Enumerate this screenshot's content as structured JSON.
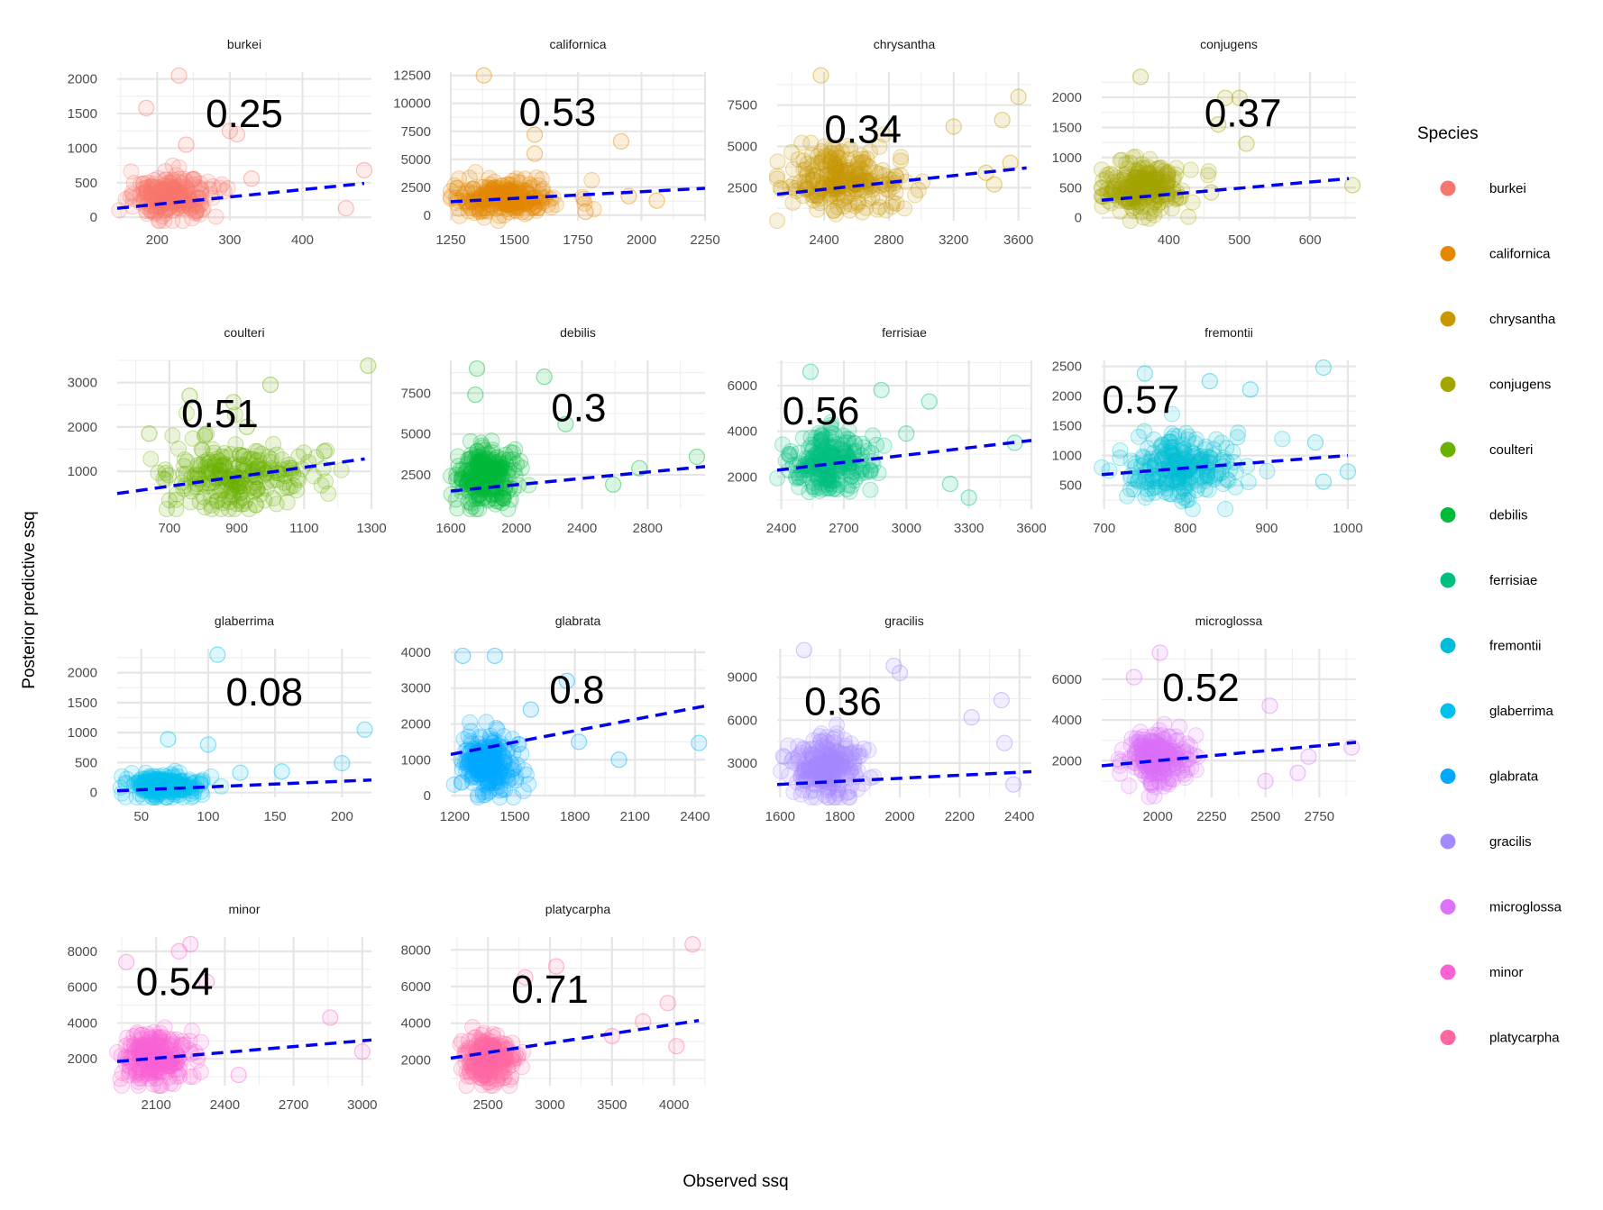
{
  "x_axis_title": "Observed ssq",
  "y_axis_title": "Posterior predictive ssq",
  "legend": {
    "title": "Species",
    "entries": [
      {
        "label": "burkei",
        "color": "#F8766D"
      },
      {
        "label": "californica",
        "color": "#E58700"
      },
      {
        "label": "chrysantha",
        "color": "#C99800"
      },
      {
        "label": "conjugens",
        "color": "#A3A500"
      },
      {
        "label": "coulteri",
        "color": "#6BB100"
      },
      {
        "label": "debilis",
        "color": "#00BA38"
      },
      {
        "label": "ferrisiae",
        "color": "#00BF7D"
      },
      {
        "label": "fremontii",
        "color": "#00BCD8"
      },
      {
        "label": "glaberrima",
        "color": "#00C0EF"
      },
      {
        "label": "glabrata",
        "color": "#00A9FF"
      },
      {
        "label": "gracilis",
        "color": "#A58AFF"
      },
      {
        "label": "microglossa",
        "color": "#DC71FA"
      },
      {
        "label": "minor",
        "color": "#FB61D7"
      },
      {
        "label": "platycarpha",
        "color": "#FF67A4"
      }
    ]
  },
  "chart_data": [
    {
      "type": "scatter",
      "title": "burkei",
      "color": "#F8766D",
      "annotation": "0.25",
      "xlim": [
        145,
        495
      ],
      "ylim": [
        -50,
        2100
      ],
      "x_ticks": [
        200,
        300,
        400
      ],
      "x_tick_labels": [
        "200",
        "300",
        "400"
      ],
      "y_ticks": [
        0,
        500,
        1000,
        1500,
        2000
      ],
      "y_tick_labels": [
        "0",
        "500",
        "1000",
        "1500",
        "2000"
      ],
      "trend": {
        "x": [
          145,
          485
        ],
        "y": [
          130,
          490
        ]
      },
      "points": {
        "x_center": 200,
        "x_spread": 35,
        "y_center": 300,
        "y_spread": 250
      },
      "sample_points": [
        [
          230,
          2050
        ],
        [
          185,
          1580
        ],
        [
          300,
          1250
        ],
        [
          310,
          1200
        ],
        [
          240,
          1050
        ],
        [
          460,
          130
        ],
        [
          485,
          680
        ],
        [
          330,
          560
        ]
      ],
      "ann_pos": [
        320,
        1500
      ]
    },
    {
      "type": "scatter",
      "title": "californica",
      "color": "#E58700",
      "annotation": "0.53",
      "xlim": [
        1250,
        2250
      ],
      "ylim": [
        -500,
        12800
      ],
      "x_ticks": [
        1250,
        1500,
        1750,
        2000,
        2250
      ],
      "x_tick_labels": [
        "1250",
        "1500",
        "1750",
        "2000",
        "2250"
      ],
      "y_ticks": [
        0,
        2500,
        5000,
        7500,
        10000,
        12500
      ],
      "y_tick_labels": [
        "0",
        "2500",
        "5000",
        "7500",
        "10000",
        "12500"
      ],
      "trend": {
        "x": [
          1250,
          2250
        ],
        "y": [
          1200,
          2400
        ]
      },
      "points": {
        "x_center": 1400,
        "x_spread": 130,
        "y_center": 1500,
        "y_spread": 1400
      },
      "sample_points": [
        [
          1380,
          12500
        ],
        [
          1580,
          7200
        ],
        [
          1920,
          6600
        ],
        [
          1580,
          5500
        ],
        [
          1950,
          1700
        ],
        [
          2060,
          1300
        ],
        [
          1780,
          300
        ]
      ],
      "ann_pos": [
        1670,
        9200
      ]
    },
    {
      "type": "scatter",
      "title": "chrysantha",
      "color": "#C99800",
      "annotation": "0.34",
      "xlim": [
        2110,
        3680
      ],
      "ylim": [
        500,
        9500
      ],
      "x_ticks": [
        2400,
        2800,
        3200,
        3600
      ],
      "x_tick_labels": [
        "2400",
        "2800",
        "3200",
        "3600"
      ],
      "y_ticks": [
        2500,
        5000,
        7500
      ],
      "y_tick_labels": [
        "2500",
        "5000",
        "7500"
      ],
      "trend": {
        "x": [
          2110,
          3650
        ],
        "y": [
          2100,
          3700
        ]
      },
      "points": {
        "x_center": 2420,
        "x_spread": 220,
        "y_center": 3000,
        "y_spread": 1500
      },
      "sample_points": [
        [
          2380,
          9300
        ],
        [
          3600,
          8000
        ],
        [
          3500,
          6600
        ],
        [
          3200,
          6200
        ],
        [
          3550,
          4000
        ],
        [
          3400,
          3400
        ],
        [
          3450,
          2700
        ]
      ],
      "ann_pos": [
        2640,
        6050
      ]
    },
    {
      "type": "scatter",
      "title": "conjugens",
      "color": "#A3A500",
      "annotation": "0.37",
      "xlim": [
        305,
        665
      ],
      "ylim": [
        -50,
        2420
      ],
      "x_ticks": [
        400,
        500,
        600
      ],
      "x_tick_labels": [
        "400",
        "500",
        "600"
      ],
      "y_ticks": [
        0,
        500,
        1000,
        1500,
        2000
      ],
      "y_tick_labels": [
        "0",
        "500",
        "1000",
        "1500",
        "2000"
      ],
      "trend": {
        "x": [
          305,
          655
        ],
        "y": [
          290,
          650
        ]
      },
      "points": {
        "x_center": 345,
        "x_spread": 40,
        "y_center": 520,
        "y_spread": 380
      },
      "sample_points": [
        [
          360,
          2340
        ],
        [
          480,
          1990
        ],
        [
          500,
          1990
        ],
        [
          470,
          1550
        ],
        [
          510,
          1230
        ],
        [
          660,
          540
        ],
        [
          460,
          420
        ]
      ],
      "ann_pos": [
        505,
        1740
      ]
    },
    {
      "type": "scatter",
      "title": "coulteri",
      "color": "#6BB100",
      "annotation": "0.51",
      "xlim": [
        545,
        1300
      ],
      "ylim": [
        150,
        3500
      ],
      "x_ticks": [
        700,
        900,
        1100,
        1300
      ],
      "x_tick_labels": [
        "700",
        "900",
        "1100",
        "1300"
      ],
      "y_ticks": [
        1000,
        2000,
        3000
      ],
      "y_tick_labels": [
        "1000",
        "2000",
        "3000"
      ],
      "trend": {
        "x": [
          545,
          1280
        ],
        "y": [
          500,
          1280
        ]
      },
      "points": {
        "x_center": 840,
        "x_spread": 140,
        "y_center": 900,
        "y_spread": 600
      },
      "sample_points": [
        [
          1290,
          3380
        ],
        [
          1000,
          2950
        ],
        [
          760,
          2700
        ],
        [
          890,
          2560
        ],
        [
          930,
          2000
        ],
        [
          1160,
          1450
        ],
        [
          640,
          1850
        ]
      ],
      "ann_pos": [
        850,
        2300
      ]
    },
    {
      "type": "scatter",
      "title": "debilis",
      "color": "#00BA38",
      "annotation": "0.3",
      "xlim": [
        1600,
        3150
      ],
      "ylim": [
        400,
        9500
      ],
      "x_ticks": [
        1600,
        2000,
        2400,
        2800
      ],
      "x_tick_labels": [
        "1600",
        "2000",
        "2400",
        "2800"
      ],
      "y_ticks": [
        2500,
        5000,
        7500
      ],
      "y_tick_labels": [
        "2500",
        "5000",
        "7500"
      ],
      "trend": {
        "x": [
          1600,
          3150
        ],
        "y": [
          1500,
          3000
        ]
      },
      "points": {
        "x_center": 1760,
        "x_spread": 110,
        "y_center": 2300,
        "y_spread": 1500
      },
      "sample_points": [
        [
          1760,
          9000
        ],
        [
          2170,
          8500
        ],
        [
          1750,
          7400
        ],
        [
          2300,
          5600
        ],
        [
          2750,
          2900
        ],
        [
          3100,
          3600
        ],
        [
          2590,
          1900
        ]
      ],
      "ann_pos": [
        2380,
        6600
      ]
    },
    {
      "type": "scatter",
      "title": "ferrisiae",
      "color": "#00BF7D",
      "annotation": "0.56",
      "xlim": [
        2380,
        3600
      ],
      "ylim": [
        600,
        7100
      ],
      "x_ticks": [
        2400,
        2700,
        3000,
        3300,
        3600
      ],
      "x_tick_labels": [
        "2400",
        "2700",
        "3000",
        "3300",
        "3600"
      ],
      "y_ticks": [
        2000,
        4000,
        6000
      ],
      "y_tick_labels": [
        "2000",
        "4000",
        "6000"
      ],
      "trend": {
        "x": [
          2380,
          3600
        ],
        "y": [
          2300,
          3600
        ]
      },
      "points": {
        "x_center": 2580,
        "x_spread": 130,
        "y_center": 2700,
        "y_spread": 1100
      },
      "sample_points": [
        [
          2540,
          6600
        ],
        [
          2880,
          5800
        ],
        [
          3110,
          5300
        ],
        [
          3210,
          1700
        ],
        [
          3300,
          1100
        ],
        [
          3520,
          3500
        ],
        [
          3000,
          3900
        ]
      ],
      "ann_pos": [
        2590,
        4900
      ]
    },
    {
      "type": "scatter",
      "title": "fremontii",
      "color": "#00BCD8",
      "annotation": "0.57",
      "xlim": [
        697,
        1010
      ],
      "ylim": [
        100,
        2600
      ],
      "x_ticks": [
        700,
        800,
        900,
        1000
      ],
      "x_tick_labels": [
        "700",
        "800",
        "900",
        "1000"
      ],
      "y_ticks": [
        500,
        1000,
        1500,
        2000,
        2500
      ],
      "y_tick_labels": [
        "500",
        "1000",
        "1500",
        "2000",
        "2500"
      ],
      "trend": {
        "x": [
          697,
          1000
        ],
        "y": [
          680,
          1000
        ]
      },
      "points": {
        "x_center": 775,
        "x_spread": 45,
        "y_center": 820,
        "y_spread": 450
      },
      "sample_points": [
        [
          970,
          2480
        ],
        [
          750,
          2380
        ],
        [
          830,
          2250
        ],
        [
          880,
          2110
        ],
        [
          960,
          1220
        ],
        [
          970,
          560
        ],
        [
          1000,
          730
        ]
      ],
      "ann_pos": [
        745,
        1940
      ]
    },
    {
      "type": "scatter",
      "title": "glaberrima",
      "color": "#00C0EF",
      "annotation": "0.08",
      "xlim": [
        32,
        222
      ],
      "ylim": [
        -80,
        2400
      ],
      "x_ticks": [
        50,
        100,
        150,
        200
      ],
      "x_tick_labels": [
        "50",
        "100",
        "150",
        "200"
      ],
      "y_ticks": [
        0,
        500,
        1000,
        1500,
        2000
      ],
      "y_tick_labels": [
        "0",
        "500",
        "1000",
        "1500",
        "2000"
      ],
      "trend": {
        "x": [
          32,
          222
        ],
        "y": [
          30,
          210
        ]
      },
      "points": {
        "x_center": 58,
        "x_spread": 18,
        "y_center": 110,
        "y_spread": 160
      },
      "sample_points": [
        [
          107,
          2300
        ],
        [
          217,
          1050
        ],
        [
          200,
          490
        ],
        [
          155,
          350
        ],
        [
          124,
          330
        ],
        [
          100,
          800
        ],
        [
          70,
          890
        ]
      ],
      "ann_pos": [
        142,
        1680
      ]
    },
    {
      "type": "scatter",
      "title": "glabrata",
      "color": "#00A9FF",
      "annotation": "0.8",
      "xlim": [
        1180,
        2450
      ],
      "ylim": [
        -50,
        4100
      ],
      "x_ticks": [
        1200,
        1500,
        1800,
        2100,
        2400
      ],
      "x_tick_labels": [
        "1200",
        "1500",
        "1800",
        "2100",
        "2400"
      ],
      "y_ticks": [
        0,
        1000,
        2000,
        3000,
        4000
      ],
      "y_tick_labels": [
        "0",
        "1000",
        "2000",
        "3000",
        "4000"
      ],
      "trend": {
        "x": [
          1180,
          2450
        ],
        "y": [
          1150,
          2500
        ]
      },
      "points": {
        "x_center": 1320,
        "x_spread": 80,
        "y_center": 850,
        "y_spread": 700
      },
      "sample_points": [
        [
          1240,
          3900
        ],
        [
          1400,
          3900
        ],
        [
          1760,
          3200
        ],
        [
          1580,
          2400
        ],
        [
          1820,
          1500
        ],
        [
          2020,
          1000
        ],
        [
          2420,
          1470
        ]
      ],
      "ann_pos": [
        1810,
        2950
      ]
    },
    {
      "type": "scatter",
      "title": "gracilis",
      "color": "#A58AFF",
      "annotation": "0.36",
      "xlim": [
        1590,
        2440
      ],
      "ylim": [
        600,
        11000
      ],
      "x_ticks": [
        1600,
        1800,
        2000,
        2200,
        2400
      ],
      "x_tick_labels": [
        "1600",
        "1800",
        "2000",
        "2200",
        "2400"
      ],
      "y_ticks": [
        3000,
        6000,
        9000
      ],
      "y_tick_labels": [
        "3000",
        "6000",
        "9000"
      ],
      "trend": {
        "x": [
          1590,
          2440
        ],
        "y": [
          1500,
          2400
        ]
      },
      "points": {
        "x_center": 1720,
        "x_spread": 70,
        "y_center": 2700,
        "y_spread": 1700
      },
      "sample_points": [
        [
          1680,
          10900
        ],
        [
          1980,
          9800
        ],
        [
          2000,
          9300
        ],
        [
          2240,
          6200
        ],
        [
          2350,
          4400
        ],
        [
          2340,
          7400
        ],
        [
          2380,
          1500
        ]
      ],
      "ann_pos": [
        1810,
        7300
      ]
    },
    {
      "type": "scatter",
      "title": "microglossa",
      "color": "#DC71FA",
      "annotation": "0.52",
      "xlim": [
        1740,
        2920
      ],
      "ylim": [
        200,
        7500
      ],
      "x_ticks": [
        2000,
        2250,
        2500,
        2750
      ],
      "x_tick_labels": [
        "2000",
        "2250",
        "2500",
        "2750"
      ],
      "y_ticks": [
        2000,
        4000,
        6000
      ],
      "y_tick_labels": [
        "2000",
        "4000",
        "6000"
      ],
      "trend": {
        "x": [
          1740,
          2920
        ],
        "y": [
          1750,
          2900
        ]
      },
      "points": {
        "x_center": 1950,
        "x_spread": 90,
        "y_center": 2200,
        "y_spread": 1000
      },
      "sample_points": [
        [
          2010,
          7300
        ],
        [
          1890,
          6100
        ],
        [
          2520,
          4700
        ],
        [
          2500,
          1000
        ],
        [
          2900,
          2650
        ],
        [
          2650,
          1400
        ],
        [
          2700,
          2200
        ]
      ],
      "ann_pos": [
        2200,
        5600
      ]
    },
    {
      "type": "scatter",
      "title": "minor",
      "color": "#FB61D7",
      "annotation": "0.54",
      "xlim": [
        1930,
        3040
      ],
      "ylim": [
        500,
        8800
      ],
      "x_ticks": [
        2100,
        2400,
        2700,
        3000
      ],
      "x_tick_labels": [
        "2100",
        "2400",
        "2700",
        "3000"
      ],
      "y_ticks": [
        2000,
        4000,
        6000,
        8000
      ],
      "y_tick_labels": [
        "2000",
        "4000",
        "6000",
        "8000"
      ],
      "trend": {
        "x": [
          1930,
          3040
        ],
        "y": [
          1850,
          3050
        ]
      },
      "points": {
        "x_center": 2060,
        "x_spread": 90,
        "y_center": 2100,
        "y_spread": 1200
      },
      "sample_points": [
        [
          2250,
          8400
        ],
        [
          2200,
          8000
        ],
        [
          1970,
          7400
        ],
        [
          2320,
          6300
        ],
        [
          2860,
          4300
        ],
        [
          3000,
          2400
        ],
        [
          2460,
          1100
        ]
      ],
      "ann_pos": [
        2180,
        6300
      ]
    },
    {
      "type": "scatter",
      "title": "platycarpha",
      "color": "#FF67A4",
      "annotation": "0.71",
      "xlim": [
        2200,
        4250
      ],
      "ylim": [
        600,
        8700
      ],
      "x_ticks": [
        2500,
        3000,
        3500,
        4000
      ],
      "x_tick_labels": [
        "2500",
        "3000",
        "3500",
        "4000"
      ],
      "y_ticks": [
        2000,
        4000,
        6000,
        8000
      ],
      "y_tick_labels": [
        "2000",
        "4000",
        "6000",
        "8000"
      ],
      "trend": {
        "x": [
          2200,
          4200
        ],
        "y": [
          2100,
          4150
        ]
      },
      "points": {
        "x_center": 2450,
        "x_spread": 130,
        "y_center": 2100,
        "y_spread": 1100
      },
      "sample_points": [
        [
          4150,
          8300
        ],
        [
          3050,
          7100
        ],
        [
          2800,
          6500
        ],
        [
          3950,
          5100
        ],
        [
          3750,
          4100
        ],
        [
          4020,
          2750
        ],
        [
          3500,
          3300
        ]
      ],
      "ann_pos": [
        3000,
        5850
      ]
    }
  ]
}
